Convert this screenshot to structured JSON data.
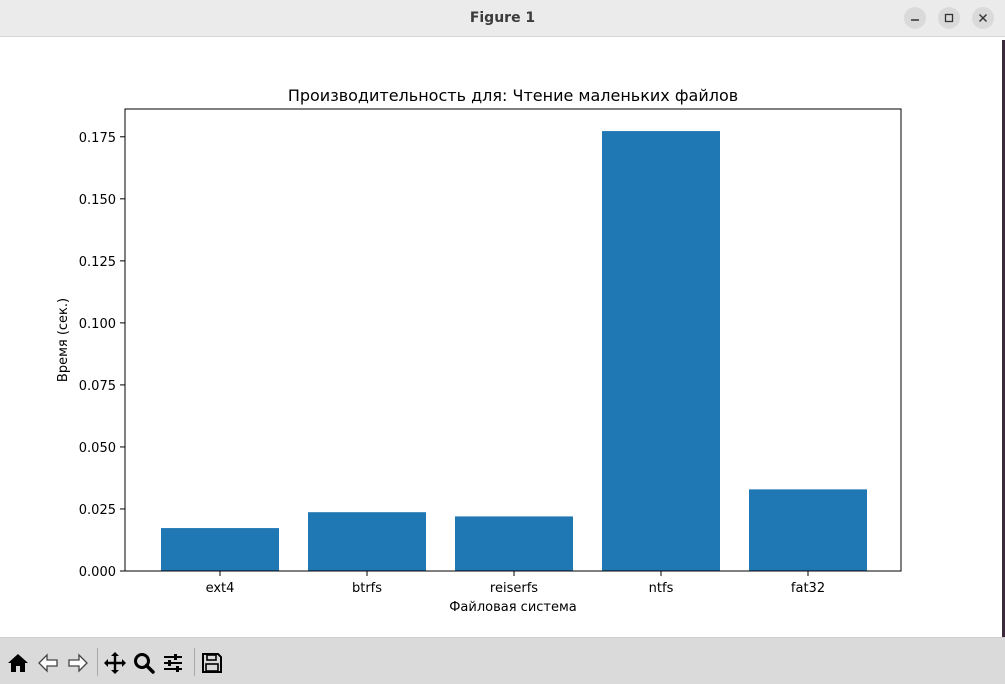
{
  "window": {
    "title": "Figure 1"
  },
  "toolbar": {
    "tools": [
      "home-icon",
      "back-icon",
      "forward-icon",
      "pan-icon",
      "zoom-icon",
      "configure-subplots-icon",
      "save-icon"
    ]
  },
  "chart_data": {
    "type": "bar",
    "title": "Производительность для: Чтение маленьких файлов",
    "xlabel": "Файловая система",
    "ylabel": "Время (сек.)",
    "categories": [
      "ext4",
      "btrfs",
      "reiserfs",
      "ntfs",
      "fat32"
    ],
    "values": [
      0.0173,
      0.0237,
      0.022,
      0.1773,
      0.0329
    ],
    "ylim": [
      0,
      0.1862
    ],
    "yticks": [
      "0.000",
      "0.025",
      "0.050",
      "0.075",
      "0.100",
      "0.125",
      "0.150",
      "0.175"
    ],
    "bar_color": "#1f77b4",
    "grid": false
  }
}
